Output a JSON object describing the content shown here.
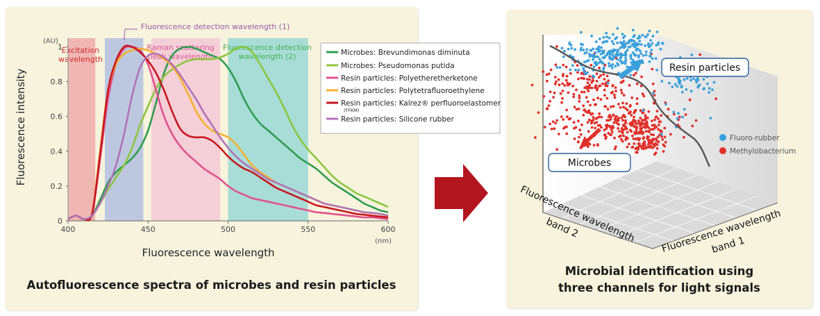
{
  "left_caption": "Autofluorescence spectra of microbes and resin particles",
  "right_caption": [
    "Microbial identification using",
    "three channels for light signals"
  ],
  "arrow_color": "#b3151f",
  "chart_data": [
    {
      "type": "line",
      "title": "Autofluorescence spectra of microbes and resin particles",
      "xlabel": "Fluorescence wavelength",
      "ylabel": "Fluorescence intensity",
      "xunit": "(nm)",
      "yunit": "(AU)",
      "xlim": [
        400,
        600
      ],
      "ylim": [
        0,
        1.05
      ],
      "xticks": [
        400,
        450,
        500,
        550,
        600
      ],
      "yticks": [
        {
          "value": 0,
          "label": "0"
        },
        {
          "value": 0.2,
          "label": "0.2"
        },
        {
          "value": 0.4,
          "label": "0.4"
        },
        {
          "value": 0.6,
          "label": "0.6"
        },
        {
          "value": 0.8,
          "label": "0.8"
        },
        {
          "value": 1.0,
          "label": "1"
        }
      ],
      "bands": [
        {
          "name": "excitation-band",
          "label": [
            "Excitation",
            "wavelength"
          ],
          "from": 400,
          "to": 417,
          "color": "#efaaaa",
          "label_color": "#d42a2a"
        },
        {
          "name": "detection-band-1",
          "label": [
            "Fluorescence detection wavelength (1)"
          ],
          "from": 423,
          "to": 447,
          "color": "#b3c0e0",
          "label_color": "#9a5aa8"
        },
        {
          "name": "raman-band",
          "label": [
            "Raman scattering",
            "peak wavelength"
          ],
          "from": 452,
          "to": 495,
          "color": "#f4c8d6",
          "label_color": "#d95a92"
        },
        {
          "name": "detection-band-2",
          "label": [
            "Fluorescence detection",
            "wavelength (2)"
          ],
          "from": 500,
          "to": 550,
          "color": "#9ad8d6",
          "label_color": "#3fb350"
        }
      ],
      "x": [
        400,
        405,
        410,
        415,
        420,
        425,
        430,
        435,
        440,
        445,
        450,
        455,
        460,
        465,
        470,
        475,
        480,
        485,
        490,
        495,
        500,
        505,
        510,
        515,
        520,
        525,
        530,
        535,
        540,
        545,
        550,
        555,
        560,
        565,
        570,
        575,
        580,
        585,
        590,
        595,
        600
      ],
      "series": [
        {
          "name": "Microbes: Brevundimonas diminuta",
          "color": "#2e9c4f",
          "values": [
            0.01,
            0.03,
            0.01,
            0.03,
            0.12,
            0.22,
            0.28,
            0.32,
            0.36,
            0.42,
            0.52,
            0.68,
            0.85,
            0.95,
            0.99,
            1.0,
            0.99,
            0.97,
            0.95,
            0.93,
            0.88,
            0.8,
            0.7,
            0.62,
            0.56,
            0.52,
            0.48,
            0.44,
            0.4,
            0.36,
            0.33,
            0.3,
            0.26,
            0.22,
            0.19,
            0.16,
            0.13,
            0.1,
            0.08,
            0.06,
            0.05
          ]
        },
        {
          "name": "Microbes: Pseudomonas putida",
          "color": "#8cc63f",
          "values": [
            0.01,
            0.03,
            0.01,
            0.03,
            0.1,
            0.18,
            0.25,
            0.32,
            0.42,
            0.55,
            0.66,
            0.76,
            0.83,
            0.87,
            0.9,
            0.92,
            0.93,
            0.93,
            0.93,
            0.94,
            0.96,
            0.99,
            1.0,
            0.97,
            0.9,
            0.82,
            0.74,
            0.65,
            0.55,
            0.47,
            0.41,
            0.36,
            0.31,
            0.26,
            0.22,
            0.19,
            0.16,
            0.14,
            0.12,
            0.1,
            0.08
          ]
        },
        {
          "name": "Resin particles: Polyetheretherketone",
          "color": "#e0508e",
          "values": [
            0.01,
            0.03,
            0.01,
            0.04,
            0.35,
            0.7,
            0.9,
            0.99,
            1.0,
            0.98,
            0.9,
            0.75,
            0.6,
            0.5,
            0.43,
            0.38,
            0.34,
            0.3,
            0.27,
            0.24,
            0.2,
            0.17,
            0.15,
            0.13,
            0.12,
            0.11,
            0.1,
            0.09,
            0.08,
            0.07,
            0.06,
            0.05,
            0.045,
            0.04,
            0.035,
            0.03,
            0.025,
            0.02,
            0.02,
            0.015,
            0.01
          ]
        },
        {
          "name": "Resin particles: Polytetrafluoroethylene",
          "color": "#f5b12e",
          "values": [
            0.01,
            0.03,
            0.01,
            0.04,
            0.4,
            0.75,
            0.9,
            0.96,
            0.98,
            0.99,
            0.98,
            0.96,
            0.93,
            0.89,
            0.82,
            0.73,
            0.63,
            0.56,
            0.52,
            0.5,
            0.48,
            0.44,
            0.38,
            0.32,
            0.28,
            0.25,
            0.22,
            0.2,
            0.18,
            0.16,
            0.14,
            0.12,
            0.1,
            0.09,
            0.08,
            0.07,
            0.06,
            0.05,
            0.045,
            0.04,
            0.03
          ]
        },
        {
          "name": "Resin particles: Kalrez® perfluoroelastomer",
          "subscript": "(FFKM)",
          "color": "#c8161e",
          "values": [
            0.01,
            0.03,
            0.01,
            0.04,
            0.38,
            0.75,
            0.92,
            1.0,
            1.0,
            0.97,
            0.92,
            0.85,
            0.75,
            0.63,
            0.53,
            0.49,
            0.48,
            0.48,
            0.46,
            0.42,
            0.37,
            0.33,
            0.3,
            0.28,
            0.25,
            0.22,
            0.19,
            0.17,
            0.15,
            0.13,
            0.11,
            0.09,
            0.08,
            0.07,
            0.06,
            0.05,
            0.04,
            0.035,
            0.03,
            0.025,
            0.02
          ]
        },
        {
          "name": "Resin particles: Silicone rubber",
          "color": "#b072b8",
          "values": [
            0.01,
            0.03,
            0.01,
            0.03,
            0.1,
            0.2,
            0.32,
            0.5,
            0.72,
            0.88,
            0.95,
            0.96,
            0.94,
            0.9,
            0.84,
            0.77,
            0.7,
            0.62,
            0.55,
            0.48,
            0.42,
            0.37,
            0.33,
            0.3,
            0.27,
            0.24,
            0.22,
            0.2,
            0.18,
            0.16,
            0.14,
            0.12,
            0.1,
            0.09,
            0.08,
            0.07,
            0.06,
            0.05,
            0.045,
            0.04,
            0.03
          ]
        }
      ]
    },
    {
      "type": "scatter",
      "title": "Microbial identification using three channels for light signals",
      "axis_labels": {
        "band1": [
          "Fluorescence wavelength",
          "band 1"
        ],
        "band2": [
          "Fluorescence wavelength",
          "band 2"
        ]
      },
      "cluster_labels": {
        "resin": "Resin particles",
        "microbes": "Microbes"
      },
      "legend": [
        {
          "name": "Fluoro-rubber",
          "color": "#3aa0dc"
        },
        {
          "name": "Methylobacterium",
          "color": "#e0302a"
        }
      ],
      "series": [
        {
          "name": "Fluoro-rubber",
          "color": "#3aa0dc",
          "count": 340
        },
        {
          "name": "Methylobacterium",
          "color": "#e0302a",
          "count": 520
        }
      ]
    }
  ]
}
